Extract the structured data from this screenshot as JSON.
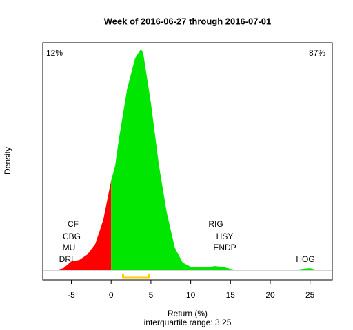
{
  "chart_data": {
    "type": "density",
    "title": "Week of 2016-06-27 through 2016-07-01",
    "subtitle": "interquartile range: 3.25",
    "x_label": "Return (%)",
    "y_label": "Density",
    "left_share": "12%",
    "right_share": "87%",
    "left_color": "#ff0000",
    "right_color": "#00e600",
    "split": 0,
    "x": [
      -7,
      -6,
      -5,
      -4,
      -3,
      -2,
      -1,
      0,
      0.5,
      1,
      2,
      3,
      3.7,
      4,
      5,
      6,
      7,
      8,
      9,
      10,
      11,
      12,
      13,
      14,
      15,
      16,
      20,
      23,
      24,
      25,
      26
    ],
    "values": [
      0,
      0.0014,
      0.006,
      0.007,
      0.0107,
      0.0178,
      0.034,
      0.061,
      0.071,
      0.09,
      0.123,
      0.144,
      0.15,
      0.1486,
      0.1136,
      0.0715,
      0.0388,
      0.0154,
      0.0051,
      0.0023,
      0.0019,
      0.0019,
      0.0028,
      0.0023,
      0.0009,
      0,
      0,
      0,
      0.0009,
      0.0014,
      0
    ],
    "quartiles": [
      1.5,
      4.75
    ],
    "quartile_color": "#ffcc00",
    "annotations": [
      "CF",
      "CBG",
      "MU",
      "DRI",
      "RIG",
      "HSY",
      "ENDP",
      "HOG"
    ],
    "xlim": [
      -8.6,
      27.8
    ],
    "ylim": [
      -0.0065,
      0.1547
    ],
    "xticks": [
      -5,
      0,
      5,
      10,
      15,
      20,
      25
    ]
  }
}
